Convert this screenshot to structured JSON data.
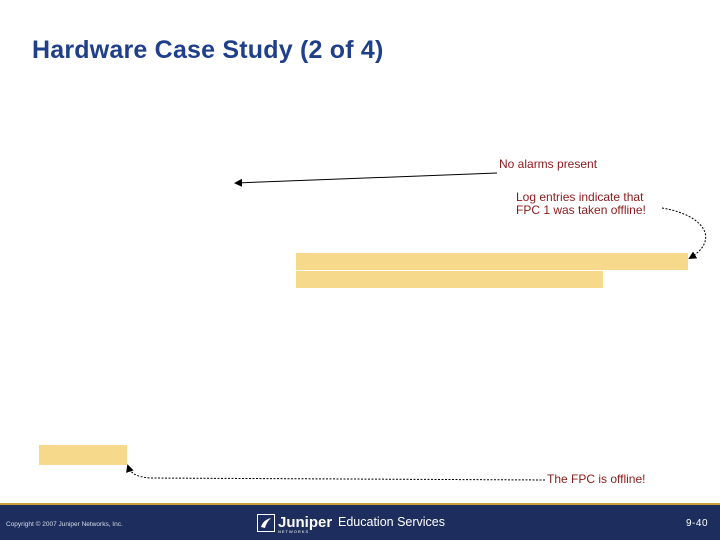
{
  "slide": {
    "title": "Hardware Case Study (2 of 4)"
  },
  "callouts": {
    "no_alarms": "No alarms present",
    "log_line1": "Log entries indicate that",
    "log_line2": "FPC 1 was taken offline!",
    "fpc_offline": "The FPC is offline!"
  },
  "colors": {
    "title": "#1f3f8a",
    "callout_text": "#8b1a1a",
    "highlight": "#f6d98a",
    "footer_bg": "#1d2e5e"
  },
  "footer": {
    "copyright": "Copyright © 2007 Juniper Networks, Inc.",
    "logo_text": "Juniper",
    "logo_sub": "NETWORKS",
    "section": "Education Services",
    "page": "9-40"
  }
}
